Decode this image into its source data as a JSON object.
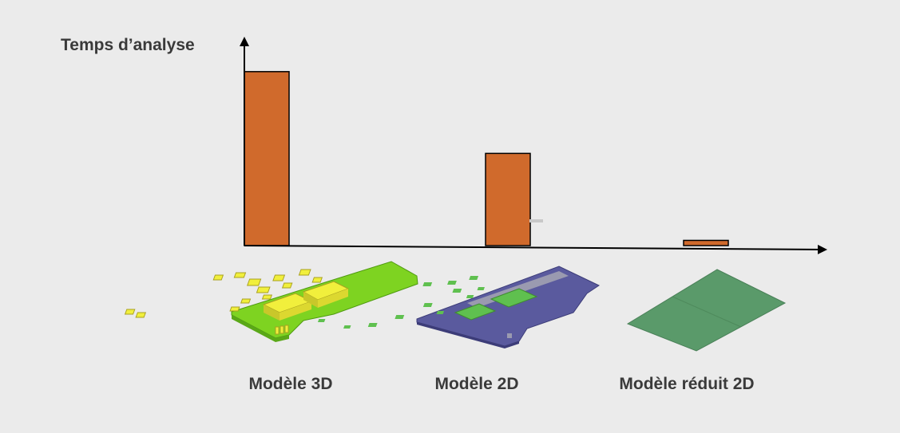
{
  "chart_data": {
    "type": "bar",
    "ylabel": "Temps d’analyse",
    "xlabel": "",
    "categories": [
      "Modèle 3D",
      "Modèle 2D",
      "Modèle réduit 2D"
    ],
    "values": [
      100,
      53,
      3
    ],
    "ylim": [
      0,
      110
    ],
    "grid": false,
    "legend": "none",
    "bar_color": "#d06a2c"
  },
  "illustrations": [
    {
      "name": "pcb-3d-model",
      "board_color": "#7ed321",
      "component_color": "#f1ef3c"
    },
    {
      "name": "pcb-2d-model",
      "board_color": "#5a5a9e",
      "component_color": "#5fc04f"
    },
    {
      "name": "pcb-reduced-2d-model",
      "board_color": "#5a9a6a"
    }
  ]
}
